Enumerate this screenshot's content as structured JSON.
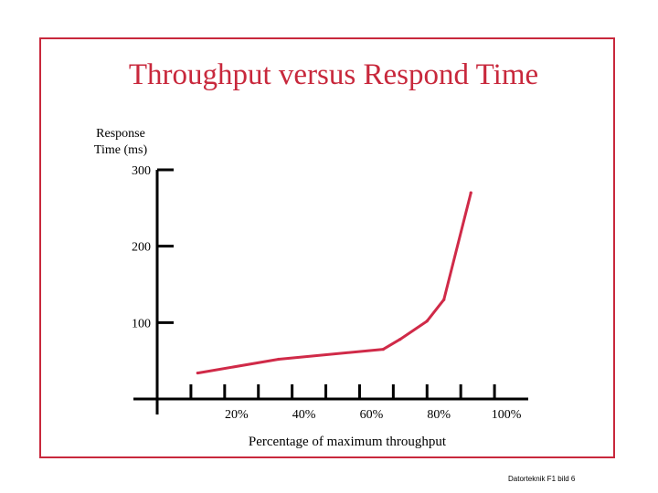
{
  "slide": {
    "title": "Throughput versus Respond Time",
    "footer": "Datorteknik F1 bild 6"
  },
  "colors": {
    "accent": "#c8283c",
    "line": "#d02a48",
    "axis": "#000000"
  },
  "chart_data": {
    "type": "line",
    "title": "",
    "ylabel_lines": [
      "Response",
      "Time (ms)"
    ],
    "xlabel": "Percentage of maximum throughput",
    "xlim": [
      0,
      110
    ],
    "ylim": [
      0,
      300
    ],
    "x_ticks": [
      {
        "value": 10,
        "label": ""
      },
      {
        "value": 20,
        "label": "20%"
      },
      {
        "value": 30,
        "label": ""
      },
      {
        "value": 40,
        "label": "40%"
      },
      {
        "value": 50,
        "label": ""
      },
      {
        "value": 60,
        "label": "60%"
      },
      {
        "value": 70,
        "label": ""
      },
      {
        "value": 80,
        "label": "80%"
      },
      {
        "value": 90,
        "label": ""
      },
      {
        "value": 100,
        "label": "100%"
      }
    ],
    "y_ticks": [
      {
        "value": 100,
        "label": "100"
      },
      {
        "value": 200,
        "label": "200"
      },
      {
        "value": 300,
        "label": "300"
      }
    ],
    "grid": false,
    "series": [
      {
        "x": [
          12,
          36,
          67,
          72,
          80,
          85,
          93
        ],
        "y": [
          34,
          52,
          65,
          78,
          102,
          130,
          270
        ]
      }
    ]
  }
}
